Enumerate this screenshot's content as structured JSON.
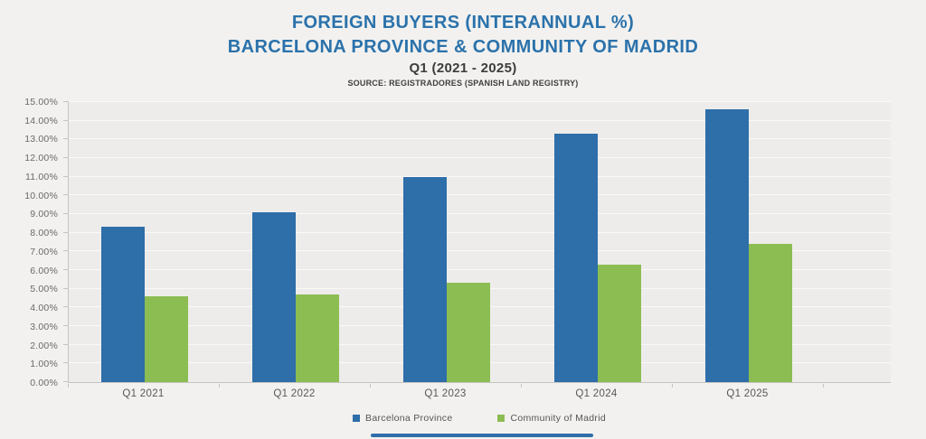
{
  "chart_data": {
    "type": "bar",
    "title_line1": "FOREIGN BUYERS (INTERANNUAL %)",
    "title_line2": "BARCELONA PROVINCE & COMMUNITY OF MADRID",
    "subtitle": "Q1 (2021 - 2025)",
    "source": "SOURCE: REGISTRADORES (SPANISH LAND REGISTRY)",
    "categories": [
      "Q1 2021",
      "Q1 2022",
      "Q1 2023",
      "Q1 2024",
      "Q1 2025"
    ],
    "series": [
      {
        "name": "Barcelona Province",
        "color": "#2E6EA9",
        "values": [
          8.3,
          9.1,
          11.0,
          13.3,
          14.6
        ]
      },
      {
        "name": "Community of Madrid",
        "color": "#8CBD53",
        "values": [
          4.6,
          4.7,
          5.3,
          6.3,
          7.4
        ]
      }
    ],
    "y_axis": {
      "min": 0,
      "max": 15,
      "step": 1,
      "tick_labels": [
        "0.00%",
        "1.00%",
        "2.00%",
        "3.00%",
        "4.00%",
        "5.00%",
        "6.00%",
        "7.00%",
        "8.00%",
        "9.00%",
        "10.00%",
        "11.00%",
        "12.00%",
        "13.00%",
        "14.00%",
        "15.00%"
      ]
    },
    "legend": {
      "position": "bottom",
      "items": [
        "Barcelona Province",
        "Community of Madrid"
      ]
    },
    "grid": true
  },
  "colors": {
    "title": "#2B72AB",
    "subtitle": "#3D3D3D",
    "bar_blue": "#2E6EA9",
    "bar_green": "#8CBD53",
    "background": "#F2F1EF",
    "plot_background": "#EDECEA",
    "gridline": "#FAF9F8",
    "axis_line": "#C6C4C1",
    "axis_text": "#6A6A6A",
    "scrollbar": "#2E6EA9"
  }
}
